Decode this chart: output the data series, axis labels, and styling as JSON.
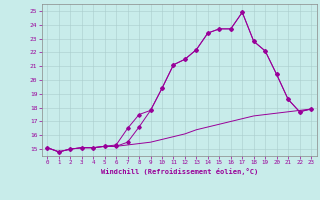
{
  "xlabel": "Windchill (Refroidissement éolien,°C)",
  "bg_color": "#c8ecea",
  "grid_color": "#b0d0d0",
  "line_color": "#990099",
  "xlim": [
    -0.5,
    23.5
  ],
  "ylim": [
    14.5,
    25.5
  ],
  "yticks": [
    15,
    16,
    17,
    18,
    19,
    20,
    21,
    22,
    23,
    24,
    25
  ],
  "xticks": [
    0,
    1,
    2,
    3,
    4,
    5,
    6,
    7,
    8,
    9,
    10,
    11,
    12,
    13,
    14,
    15,
    16,
    17,
    18,
    19,
    20,
    21,
    22,
    23
  ],
  "line1_x": [
    0,
    1,
    2,
    3,
    4,
    5,
    6,
    7,
    8,
    9,
    10,
    11,
    12,
    13,
    14,
    15,
    16,
    17,
    18,
    19,
    20,
    21,
    22,
    23
  ],
  "line1_y": [
    15.1,
    14.8,
    15.0,
    15.1,
    15.1,
    15.2,
    15.2,
    15.3,
    15.4,
    15.5,
    15.7,
    15.9,
    16.1,
    16.4,
    16.6,
    16.8,
    17.0,
    17.2,
    17.4,
    17.5,
    17.6,
    17.7,
    17.8,
    17.9
  ],
  "line2_x": [
    0,
    1,
    2,
    3,
    4,
    5,
    6,
    7,
    8,
    9,
    10,
    11,
    12,
    13,
    14,
    15,
    16,
    17,
    18,
    19,
    20,
    21,
    22,
    23
  ],
  "line2_y": [
    15.1,
    14.8,
    15.0,
    15.1,
    15.1,
    15.2,
    15.2,
    15.5,
    16.6,
    17.8,
    19.4,
    21.1,
    21.5,
    22.2,
    23.4,
    23.7,
    23.7,
    24.9,
    22.8,
    22.1,
    20.4,
    18.6,
    17.7,
    17.9
  ],
  "line3_x": [
    0,
    1,
    2,
    3,
    4,
    5,
    6,
    7,
    8,
    9,
    10,
    11,
    12,
    13,
    14,
    15,
    16,
    17,
    18,
    19,
    20,
    21,
    22,
    23
  ],
  "line3_y": [
    15.1,
    14.8,
    15.0,
    15.1,
    15.1,
    15.2,
    15.3,
    16.5,
    17.5,
    17.8,
    19.4,
    21.1,
    21.5,
    22.2,
    23.4,
    23.7,
    23.7,
    24.9,
    22.8,
    22.1,
    20.4,
    18.6,
    17.7,
    17.9
  ]
}
